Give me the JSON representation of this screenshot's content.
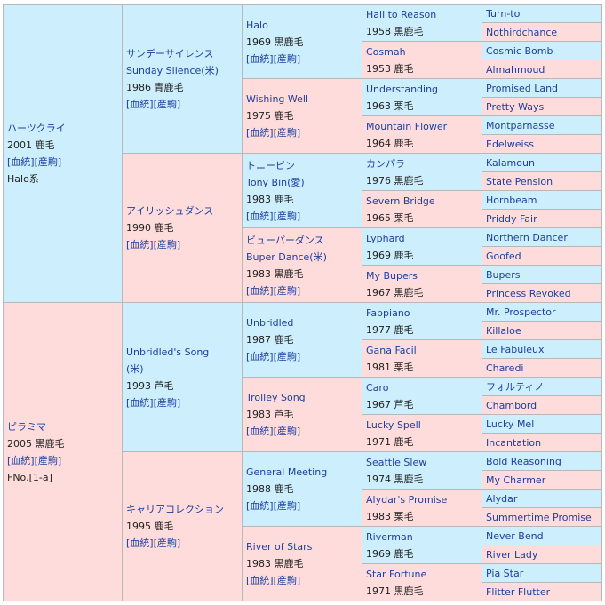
{
  "generations": [
    [
      {
        "name": "ハーツクライ",
        "born": "2001 鹿毛",
        "links": "[血統][産駒]",
        "note": "Halo系"
      },
      {
        "name": "ピラミマ",
        "born": "2005 黒鹿毛",
        "links": "[血統][産駒]",
        "note": "FNo.[1-a]"
      }
    ],
    [
      {
        "name": "サンデーサイレンス",
        "name2": "Sunday Silence(米)",
        "born": "1986 青鹿毛",
        "links": "[血統][産駒]"
      },
      {
        "name": "アイリッシュダンス",
        "born": "1990 鹿毛",
        "links": "[血統][産駒]"
      },
      {
        "name": "Unbridled's Song",
        "name2": "(米)",
        "born": "1993 芦毛",
        "links": "[血統][産駒]"
      },
      {
        "name": "キャリアコレクション",
        "born": "1995 鹿毛",
        "links": "[血統][産駒]"
      }
    ],
    [
      {
        "name": "Halo",
        "born": "1969 黒鹿毛",
        "links": "[血統][産駒]"
      },
      {
        "name": "Wishing Well",
        "born": "1975 鹿毛",
        "links": "[血統][産駒]"
      },
      {
        "name": "トニービン",
        "name2": "Tony Bin(愛)",
        "born": "1983 鹿毛",
        "links": "[血統][産駒]"
      },
      {
        "name": "ビューパーダンス",
        "name2": "Buper Dance(米)",
        "born": "1983 黒鹿毛",
        "links": "[血統][産駒]"
      },
      {
        "name": "Unbridled",
        "born": "1987 鹿毛",
        "links": "[血統][産駒]"
      },
      {
        "name": "Trolley Song",
        "born": "1983 芦毛",
        "links": "[血統][産駒]"
      },
      {
        "name": "General Meeting",
        "born": "1988 鹿毛",
        "links": "[血統][産駒]"
      },
      {
        "name": "River of Stars",
        "born": "1983 黒鹿毛",
        "links": "[血統][産駒]"
      }
    ],
    [
      {
        "name": "Hail to Reason",
        "born": "1958 黒鹿毛"
      },
      {
        "name": "Cosmah",
        "born": "1953 鹿毛"
      },
      {
        "name": "Understanding",
        "born": "1963 栗毛"
      },
      {
        "name": "Mountain Flower",
        "born": "1964 鹿毛"
      },
      {
        "name": "カンパラ",
        "born": "1976 黒鹿毛"
      },
      {
        "name": "Severn Bridge",
        "born": "1965 栗毛"
      },
      {
        "name": "Lyphard",
        "born": "1969 鹿毛"
      },
      {
        "name": "My Bupers",
        "born": "1967 黒鹿毛"
      },
      {
        "name": "Fappiano",
        "born": "1977 鹿毛"
      },
      {
        "name": "Gana Facil",
        "born": "1981 栗毛"
      },
      {
        "name": "Caro",
        "born": "1967 芦毛"
      },
      {
        "name": "Lucky Spell",
        "born": "1971 鹿毛"
      },
      {
        "name": "Seattle Slew",
        "born": "1974 黒鹿毛"
      },
      {
        "name": "Alydar's Promise",
        "born": "1983 栗毛"
      },
      {
        "name": "Riverman",
        "born": "1969 鹿毛"
      },
      {
        "name": "Star Fortune",
        "born": "1971 黒鹿毛"
      }
    ],
    [
      {
        "name": "Turn-to"
      },
      {
        "name": "Nothirdchance"
      },
      {
        "name": "Cosmic Bomb"
      },
      {
        "name": "Almahmoud"
      },
      {
        "name": "Promised Land"
      },
      {
        "name": "Pretty Ways"
      },
      {
        "name": "Montparnasse"
      },
      {
        "name": "Edelweiss"
      },
      {
        "name": "Kalamoun"
      },
      {
        "name": "State Pension"
      },
      {
        "name": "Hornbeam"
      },
      {
        "name": "Priddy Fair"
      },
      {
        "name": "Northern Dancer"
      },
      {
        "name": "Goofed"
      },
      {
        "name": "Bupers"
      },
      {
        "name": "Princess Revoked"
      },
      {
        "name": "Mr. Prospector"
      },
      {
        "name": "Killaloe"
      },
      {
        "name": "Le Fabuleux"
      },
      {
        "name": "Charedi"
      },
      {
        "name": "フォルティノ"
      },
      {
        "name": "Chambord"
      },
      {
        "name": "Lucky Mel"
      },
      {
        "name": "Incantation"
      },
      {
        "name": "Bold Reasoning"
      },
      {
        "name": "My Charmer"
      },
      {
        "name": "Alydar"
      },
      {
        "name": "Summertime Promise"
      },
      {
        "name": "Never Bend"
      },
      {
        "name": "River Lady"
      },
      {
        "name": "Pia Star"
      },
      {
        "name": "Flitter Flutter"
      }
    ]
  ]
}
